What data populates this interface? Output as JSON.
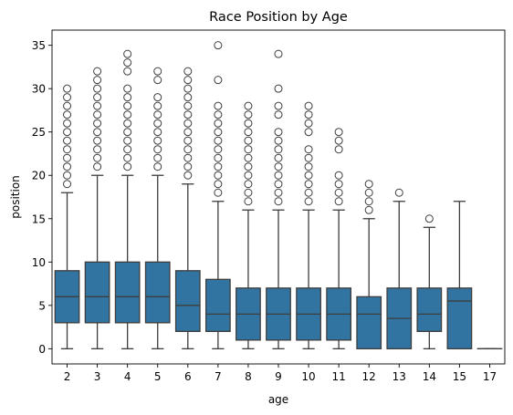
{
  "chart_data": {
    "type": "box",
    "title": "Race Position by Age",
    "xlabel": "age",
    "ylabel": "position",
    "ylim": [
      -1.75,
      36.75
    ],
    "yticks": [
      0,
      5,
      10,
      15,
      20,
      25,
      30,
      35
    ],
    "grid": false,
    "legend": "none",
    "box_color": "#3274a1",
    "line_color": "#3d3d3d",
    "categories": [
      "2",
      "3",
      "4",
      "5",
      "6",
      "7",
      "8",
      "9",
      "10",
      "11",
      "12",
      "13",
      "14",
      "15",
      "17"
    ],
    "boxes": [
      {
        "age": "2",
        "min": 0,
        "q1": 3,
        "median": 6,
        "q3": 9,
        "max": 18,
        "outliers": [
          19,
          20,
          21,
          22,
          23,
          24,
          25,
          26,
          27,
          28,
          29,
          30
        ]
      },
      {
        "age": "3",
        "min": 0,
        "q1": 3,
        "median": 6,
        "q3": 10,
        "max": 20,
        "outliers": [
          21,
          22,
          23,
          24,
          25,
          26,
          27,
          28,
          29,
          30,
          31,
          32
        ]
      },
      {
        "age": "4",
        "min": 0,
        "q1": 3,
        "median": 6,
        "q3": 10,
        "max": 20,
        "outliers": [
          21,
          22,
          23,
          24,
          25,
          26,
          27,
          28,
          29,
          30,
          32,
          33,
          34
        ]
      },
      {
        "age": "5",
        "min": 0,
        "q1": 3,
        "median": 6,
        "q3": 10,
        "max": 20,
        "outliers": [
          21,
          22,
          23,
          24,
          25,
          26,
          27,
          28,
          29,
          31,
          32
        ]
      },
      {
        "age": "6",
        "min": 0,
        "q1": 2,
        "median": 5,
        "q3": 9,
        "max": 19,
        "outliers": [
          20,
          21,
          22,
          23,
          24,
          25,
          26,
          27,
          28,
          29,
          30,
          31,
          32
        ]
      },
      {
        "age": "7",
        "min": 0,
        "q1": 2,
        "median": 4,
        "q3": 8,
        "max": 17,
        "outliers": [
          18,
          19,
          20,
          21,
          22,
          23,
          24,
          25,
          26,
          27,
          28,
          31,
          35
        ]
      },
      {
        "age": "8",
        "min": 0,
        "q1": 1,
        "median": 4,
        "q3": 7,
        "max": 16,
        "outliers": [
          17,
          18,
          19,
          20,
          21,
          22,
          23,
          24,
          25,
          26,
          27,
          28
        ]
      },
      {
        "age": "9",
        "min": 0,
        "q1": 1,
        "median": 4,
        "q3": 7,
        "max": 16,
        "outliers": [
          17,
          18,
          19,
          20,
          21,
          22,
          23,
          24,
          25,
          27,
          28,
          30,
          34
        ]
      },
      {
        "age": "10",
        "min": 0,
        "q1": 1,
        "median": 4,
        "q3": 7,
        "max": 16,
        "outliers": [
          17,
          18,
          19,
          20,
          21,
          22,
          23,
          25,
          26,
          27,
          28
        ]
      },
      {
        "age": "11",
        "min": 0,
        "q1": 1,
        "median": 4,
        "q3": 7,
        "max": 16,
        "outliers": [
          17,
          18,
          19,
          20,
          23,
          24,
          25
        ]
      },
      {
        "age": "12",
        "min": 0,
        "q1": 0,
        "median": 4,
        "q3": 6,
        "max": 15,
        "outliers": [
          16,
          17,
          18,
          19
        ]
      },
      {
        "age": "13",
        "min": 0,
        "q1": 0,
        "median": 3.5,
        "q3": 7,
        "max": 17,
        "outliers": [
          18
        ]
      },
      {
        "age": "14",
        "min": 0,
        "q1": 2,
        "median": 4,
        "q3": 7,
        "max": 14,
        "outliers": [
          15
        ]
      },
      {
        "age": "15",
        "min": 0,
        "q1": 0,
        "median": 5.5,
        "q3": 7,
        "max": 17,
        "outliers": []
      },
      {
        "age": "17",
        "min": 0,
        "q1": 0,
        "median": 0,
        "q3": 0,
        "max": 0,
        "outliers": []
      }
    ]
  }
}
